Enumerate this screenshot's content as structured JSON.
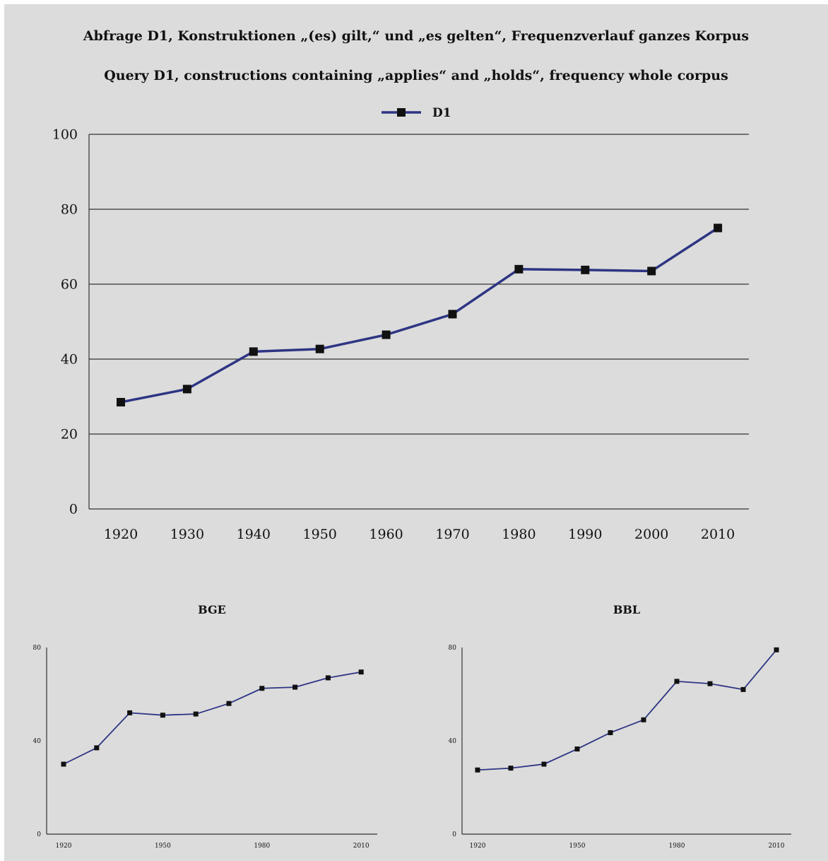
{
  "titles": {
    "german": "Abfrage D1, Konstruktionen „(es) gilt,“ und „es gelten“, Frequenzverlauf ganzes Korpus",
    "english": "Query D1, constructions containing „applies“ and „holds“, frequency whole corpus"
  },
  "colors": {
    "line": "#2e3583",
    "marker": "#111111",
    "grid": "#333333",
    "background": "#dcdcdc"
  },
  "chart_data": [
    {
      "type": "line",
      "title": "",
      "legend": [
        "D1"
      ],
      "legend_position": "top-center",
      "grid": "horizontal",
      "x": [
        "1920",
        "1930",
        "1940",
        "1950",
        "1960",
        "1970",
        "1980",
        "1990",
        "2000",
        "2010"
      ],
      "series": [
        {
          "name": "D1",
          "values": [
            28.5,
            32,
            42,
            42.7,
            46.5,
            52,
            64,
            63.8,
            63.5,
            75
          ]
        }
      ],
      "ylim": [
        0,
        100
      ],
      "yticks": [
        0,
        20,
        40,
        60,
        80,
        100
      ]
    },
    {
      "type": "line",
      "title": "BGE",
      "grid": "none",
      "x": [
        "1920",
        "1930",
        "1940",
        "1950",
        "1960",
        "1970",
        "1980",
        "1990",
        "2000",
        "2010"
      ],
      "xtick_labels": [
        "1920",
        "1950",
        "1980",
        "2010"
      ],
      "series": [
        {
          "values": [
            30,
            37,
            52,
            51,
            51.5,
            56,
            62.5,
            63,
            67,
            69.5
          ]
        }
      ],
      "ylim": [
        0,
        80
      ],
      "yticks": [
        0,
        40,
        80
      ]
    },
    {
      "type": "line",
      "title": "BBL",
      "grid": "none",
      "x": [
        "1920",
        "1930",
        "1940",
        "1950",
        "1960",
        "1970",
        "1980",
        "1990",
        "2000",
        "2010"
      ],
      "xtick_labels": [
        "1920",
        "1950",
        "1980",
        "2010"
      ],
      "series": [
        {
          "values": [
            27.5,
            28.3,
            30,
            36.5,
            43.5,
            49,
            65.5,
            64.5,
            62,
            79
          ]
        }
      ],
      "ylim": [
        0,
        80
      ],
      "yticks": [
        0,
        40,
        80
      ]
    }
  ]
}
